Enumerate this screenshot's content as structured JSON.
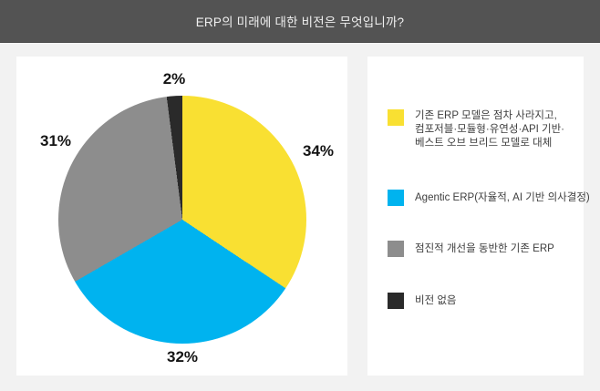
{
  "header": {
    "title": "ERP의 미래에 대한 비전은 무엇입니까?"
  },
  "colors": {
    "header_bg": "#535353",
    "page_bg": "#F2F2F2",
    "card_bg": "#FFFFFF",
    "slice_yellow": "#F9E032",
    "slice_blue": "#00B3EF",
    "slice_gray": "#8D8D8D",
    "slice_black": "#2A2A2A"
  },
  "chart_data": {
    "type": "pie",
    "title": "ERP의 미래에 대한 비전은 무엇입니까?",
    "start_angle_deg": 0,
    "direction": "clockwise",
    "legend_position": "right",
    "slices": [
      {
        "name": "기존 ERP 모델은 점차 사라지고, 컴포저블·모듈형·유연성·API 기반·베스트 오브 브리드 모델로 대체",
        "value": 34,
        "label": "34%",
        "color": "#F9E032"
      },
      {
        "name": "Agentic ERP(자율적, AI 기반 의사결정)",
        "value": 32,
        "label": "32%",
        "color": "#00B3EF"
      },
      {
        "name": "점진적 개선을 동반한 기존 ERP",
        "value": 31,
        "label": "31%",
        "color": "#8D8D8D"
      },
      {
        "name": "비전 없음",
        "value": 2,
        "label": "2%",
        "color": "#2A2A2A"
      }
    ]
  },
  "legend": {
    "items": [
      {
        "color": "#F9E032",
        "lines": [
          "기존 ERP 모델은 점차 사라지고,",
          "컴포저블·모듈형·유연성·API 기반·",
          "베스트 오브 브리드 모델로 대체"
        ]
      },
      {
        "color": "#00B3EF",
        "lines": [
          "Agentic ERP(자율적, AI 기반 의사결정)"
        ]
      },
      {
        "color": "#8D8D8D",
        "lines": [
          "점진적 개선을 동반한 기존 ERP"
        ]
      },
      {
        "color": "#2A2A2A",
        "lines": [
          "비전 없음"
        ]
      }
    ]
  }
}
